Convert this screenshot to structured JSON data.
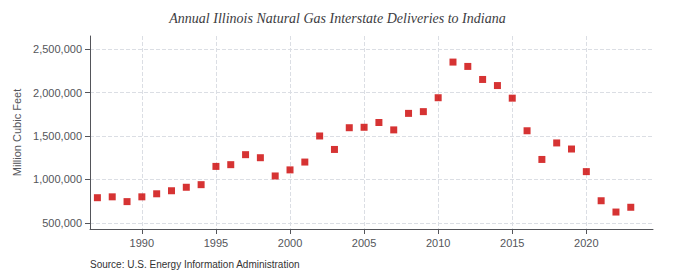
{
  "chart_data": {
    "type": "scatter",
    "title": "Annual Illinois Natural Gas Interstate Deliveries to Indiana",
    "ylabel": "Million Cubic Feet",
    "annotation": "Source: U.S. Energy Information Administration",
    "color": "#cc0000",
    "marker": "square",
    "grid": true,
    "xlim": [
      1986.5,
      2024.5
    ],
    "ylim": [
      430000,
      2650000
    ],
    "xticks": [
      1990,
      1995,
      2000,
      2005,
      2010,
      2015,
      2020
    ],
    "yticks": [
      {
        "value": 500000,
        "label": "500,000"
      },
      {
        "value": 1000000,
        "label": "1,000,000"
      },
      {
        "value": 1500000,
        "label": "1,500,000"
      },
      {
        "value": 2000000,
        "label": "2,000,000"
      },
      {
        "value": 2500000,
        "label": "2,500,000"
      }
    ],
    "x": [
      1987,
      1988,
      1989,
      1990,
      1991,
      1992,
      1993,
      1994,
      1995,
      1996,
      1997,
      1998,
      1999,
      2000,
      2001,
      2002,
      2003,
      2004,
      2005,
      2006,
      2007,
      2008,
      2009,
      2010,
      2011,
      2012,
      2013,
      2014,
      2015,
      2016,
      2017,
      2018,
      2019,
      2020,
      2021,
      2022,
      2023
    ],
    "values": [
      790000,
      800000,
      745000,
      800000,
      835000,
      870000,
      910000,
      940000,
      1150000,
      1170000,
      1285000,
      1250000,
      1040000,
      1110000,
      1200000,
      1500000,
      1345000,
      1595000,
      1600000,
      1655000,
      1570000,
      1760000,
      1780000,
      1940000,
      2350000,
      2300000,
      2150000,
      2080000,
      1935000,
      1560000,
      1230000,
      1420000,
      1350000,
      1090000,
      755000,
      625000,
      680000
    ]
  }
}
